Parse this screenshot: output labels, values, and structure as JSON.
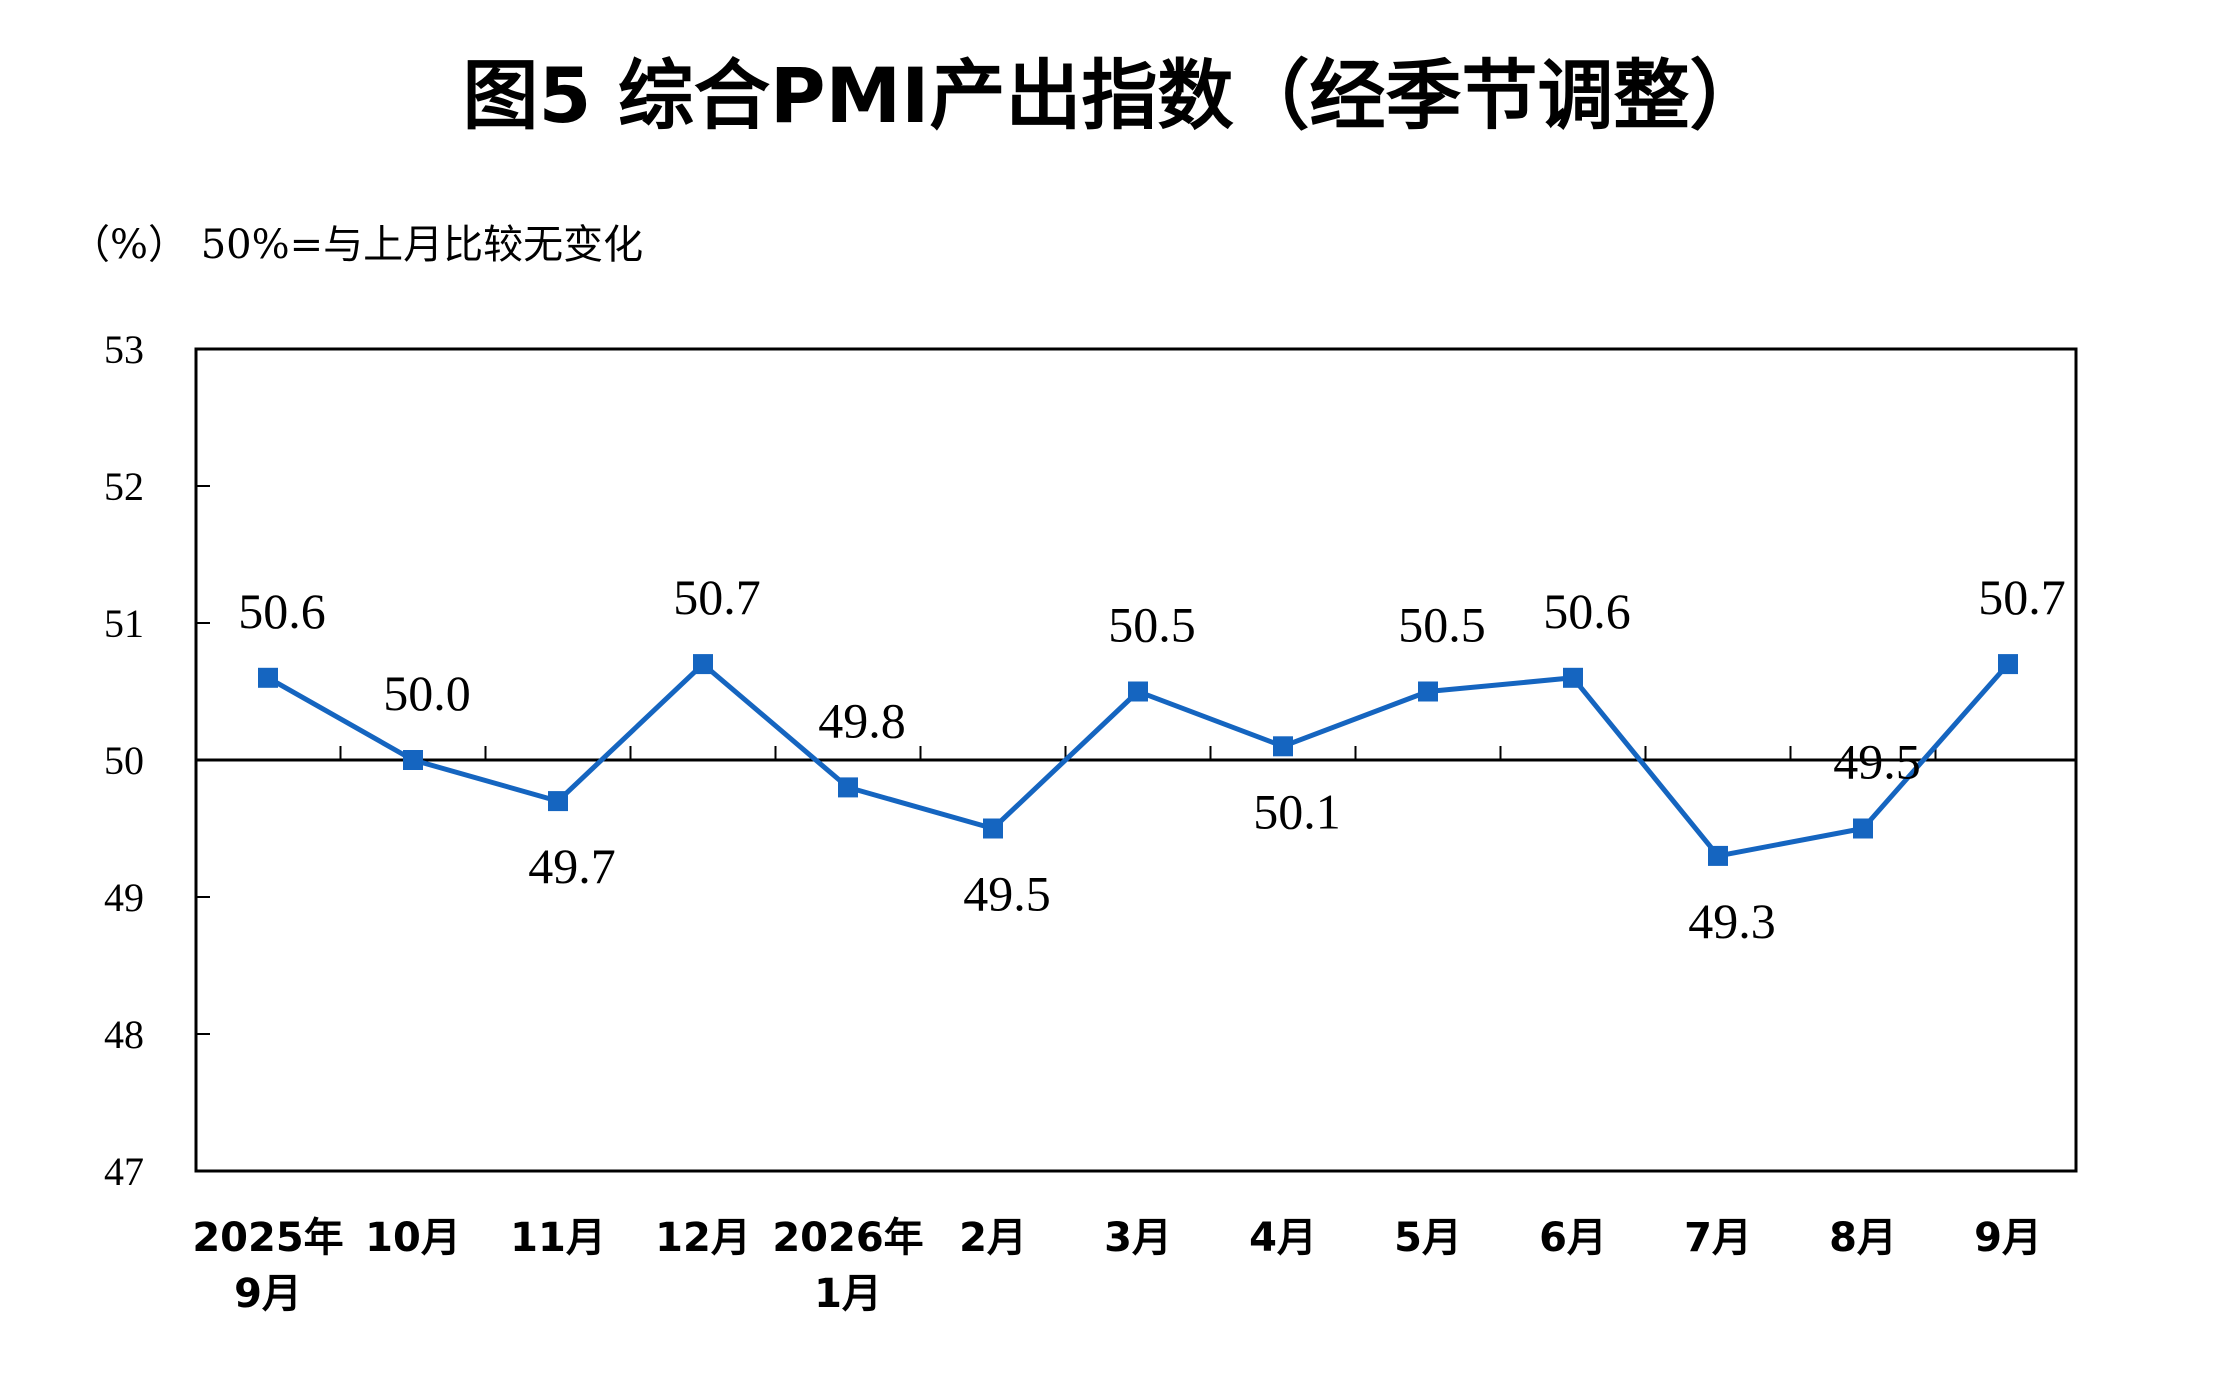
{
  "title": "图5 综合PMI产出指数（经季节调整）",
  "unit_note": "（%） 50%=与上月比较无变化",
  "colors": {
    "series": "#1565C0",
    "axis": "#000000",
    "background": "#ffffff"
  },
  "chart_data": {
    "type": "line",
    "title": "图5 综合PMI产出指数（经季节调整）",
    "ylabel": "（%） 50%=与上月比较无变化",
    "xlabel": "",
    "ylim": [
      47,
      53
    ],
    "yticks": [
      "47",
      "48",
      "49",
      "50",
      "51",
      "52",
      "53"
    ],
    "reference_line": 50,
    "grid": false,
    "legend": "none",
    "categories": [
      [
        "2025年",
        "9月"
      ],
      [
        "10月"
      ],
      [
        "11月"
      ],
      [
        "12月"
      ],
      [
        "2026年",
        "1月"
      ],
      [
        "2月"
      ],
      [
        "3月"
      ],
      [
        "4月"
      ],
      [
        "5月"
      ],
      [
        "6月"
      ],
      [
        "7月"
      ],
      [
        "8月"
      ],
      [
        "9月"
      ]
    ],
    "series": [
      {
        "values": [
          50.6,
          50.0,
          49.7,
          50.7,
          49.8,
          49.5,
          50.5,
          50.1,
          50.5,
          50.6,
          49.3,
          49.5,
          50.7
        ],
        "labels": [
          "50.6",
          "50.0",
          "49.7",
          "50.7",
          "49.8",
          "49.5",
          "50.5",
          "50.1",
          "50.5",
          "50.6",
          "49.3",
          "49.5",
          "50.7"
        ]
      }
    ]
  }
}
